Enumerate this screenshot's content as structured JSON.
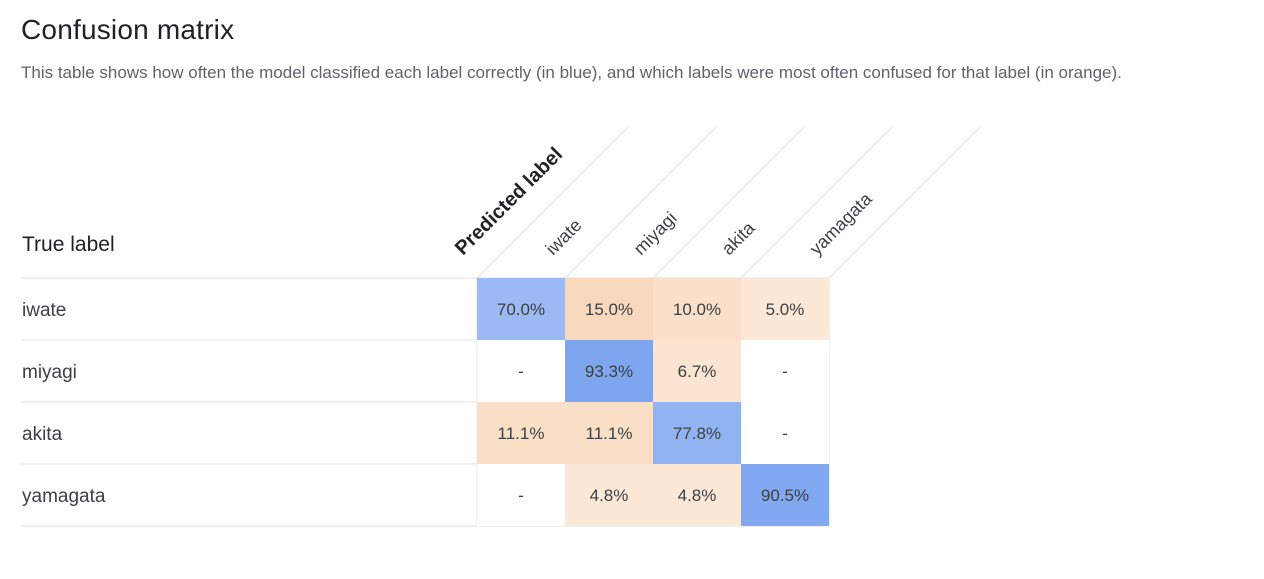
{
  "header": {
    "title": "Confusion matrix",
    "description": "This table shows how often the model classified each label correctly (in blue), and which labels were most often confused for that label (in orange)."
  },
  "chart_data": {
    "type": "heatmap",
    "row_axis_label": "True label",
    "column_axis_label": "Predicted label",
    "rows": [
      "iwate",
      "miyagi",
      "akita",
      "yamagata"
    ],
    "columns": [
      "iwate",
      "miyagi",
      "akita",
      "yamagata"
    ],
    "values": [
      [
        70.0,
        15.0,
        10.0,
        5.0
      ],
      [
        null,
        93.3,
        6.7,
        null
      ],
      [
        11.1,
        11.1,
        77.8,
        null
      ],
      [
        null,
        4.8,
        4.8,
        90.5
      ]
    ],
    "cell_text": [
      [
        "70.0%",
        "15.0%",
        "10.0%",
        "5.0%"
      ],
      [
        "-",
        "93.3%",
        "6.7%",
        "-"
      ],
      [
        "11.1%",
        "11.1%",
        "77.8%",
        "-"
      ],
      [
        "-",
        "4.8%",
        "4.8%",
        "90.5%"
      ]
    ],
    "colors": {
      "correct_high": "#7ba4ef",
      "correct_low": "#a8c3f4",
      "confused_high": "#f9d9bd",
      "confused_low": "#fdefe3",
      "empty": "#ffffff",
      "grid": "#e0e0e0",
      "text": "#3c4043"
    }
  }
}
